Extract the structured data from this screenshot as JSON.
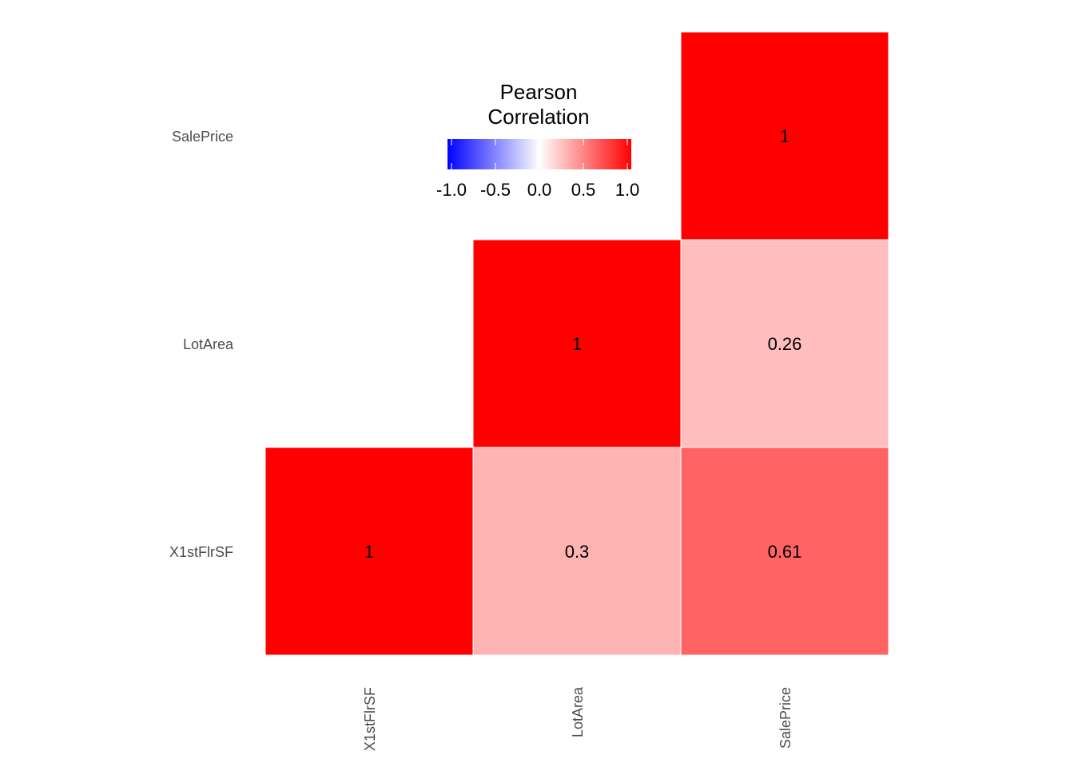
{
  "chart_data": {
    "type": "heatmap",
    "variables": [
      "X1stFlrSF",
      "LotArea",
      "SalePrice"
    ],
    "cells": [
      {
        "x": "X1stFlrSF",
        "y": "X1stFlrSF",
        "value": 1,
        "label": "1"
      },
      {
        "x": "LotArea",
        "y": "X1stFlrSF",
        "value": 0.3,
        "label": "0.3"
      },
      {
        "x": "SalePrice",
        "y": "X1stFlrSF",
        "value": 0.61,
        "label": "0.61"
      },
      {
        "x": "LotArea",
        "y": "LotArea",
        "value": 1,
        "label": "1"
      },
      {
        "x": "SalePrice",
        "y": "LotArea",
        "value": 0.26,
        "label": "0.26"
      },
      {
        "x": "SalePrice",
        "y": "SalePrice",
        "value": 1,
        "label": "1"
      }
    ],
    "legend": {
      "title_lines": [
        "Pearson",
        "Correlation"
      ],
      "ticks": [
        -1.0,
        -0.5,
        0.0,
        0.5,
        1.0
      ],
      "tick_labels": [
        "-1.0",
        "-0.5",
        "0.0",
        "0.5",
        "1.0"
      ],
      "limits": [
        -1,
        1
      ],
      "colors": {
        "low": "#0000ff",
        "mid": "#ffffff",
        "high": "#ff0000"
      },
      "placement": "top-center"
    },
    "grid": false
  }
}
